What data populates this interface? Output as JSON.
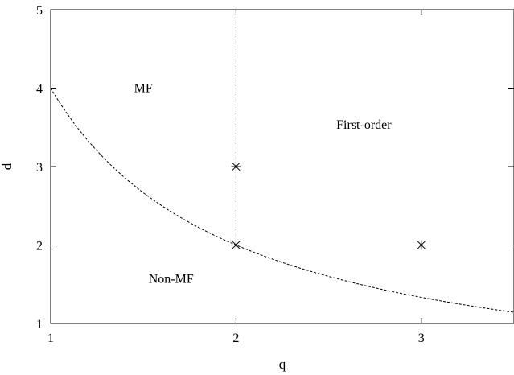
{
  "chart_data": {
    "type": "line",
    "title": "",
    "xlabel": "q",
    "ylabel": "d",
    "xlim": [
      1,
      3.5
    ],
    "ylim": [
      1,
      5
    ],
    "x_ticks": [
      1,
      2,
      3
    ],
    "y_ticks": [
      1,
      2,
      3,
      4,
      5
    ],
    "grid": false,
    "legend": "none",
    "series": [
      {
        "style": "dashed",
        "color": "#000000",
        "function": "d = 2q/(q-1) - 2 ... upper critical boundary passing (1,4),(2,2),(3,1.33)",
        "points": [
          [
            1.0,
            4.0
          ],
          [
            1.1,
            3.74
          ],
          [
            1.2,
            3.5
          ],
          [
            1.3,
            3.28
          ],
          [
            1.4,
            3.08
          ],
          [
            1.5,
            2.9
          ],
          [
            1.6,
            2.74
          ],
          [
            1.7,
            2.6
          ],
          [
            1.8,
            2.47
          ],
          [
            1.9,
            2.35
          ],
          [
            2.0,
            2.0
          ],
          [
            2.2,
            1.83
          ],
          [
            2.4,
            1.7
          ],
          [
            2.6,
            1.59
          ],
          [
            2.8,
            1.5
          ],
          [
            3.0,
            1.33
          ],
          [
            3.2,
            1.24
          ],
          [
            3.4,
            1.17
          ],
          [
            3.5,
            1.13
          ]
        ]
      },
      {
        "style": "dotted",
        "color": "#000000",
        "points": [
          [
            2,
            2
          ],
          [
            2,
            5
          ]
        ]
      },
      {
        "style": "markers",
        "marker": "asterisk",
        "color": "#000000",
        "points": [
          [
            2,
            3
          ],
          [
            2,
            2
          ],
          [
            3,
            2
          ]
        ]
      }
    ],
    "annotations": [
      {
        "text": "MF",
        "x": 1.5,
        "y": 3.95
      },
      {
        "text": "First-order",
        "x": 2.69,
        "y": 3.48
      },
      {
        "text": "Non-MF",
        "x": 1.65,
        "y": 1.52
      }
    ]
  }
}
